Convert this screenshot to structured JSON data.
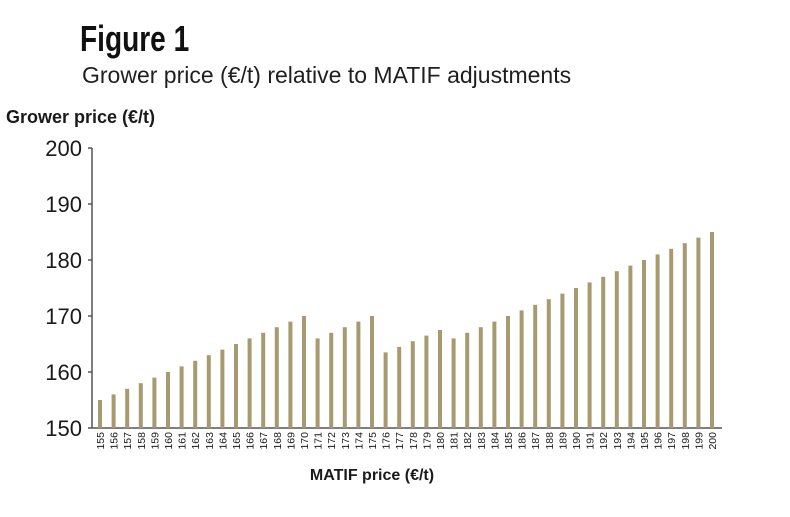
{
  "figure_label": "Figure 1",
  "colors": {
    "bar": "#a89a70",
    "axis": "#555555",
    "text": "#1a1a1a"
  },
  "chart_data": {
    "type": "bar",
    "title": "Grower price (€/t) relative to MATIF adjustments",
    "xlabel": "MATIF price (€/t)",
    "ylabel": "Grower price (€/t)",
    "ylim": [
      150,
      200
    ],
    "yticks": [
      150,
      160,
      170,
      180,
      190,
      200
    ],
    "grid": false,
    "legend": "none",
    "categories": [
      "155",
      "156",
      "157",
      "158",
      "159",
      "160",
      "161",
      "162",
      "163",
      "164",
      "165",
      "166",
      "167",
      "168",
      "169",
      "170",
      "171",
      "172",
      "173",
      "174",
      "175",
      "176",
      "177",
      "178",
      "179",
      "180",
      "181",
      "182",
      "183",
      "184",
      "185",
      "186",
      "187",
      "188",
      "189",
      "190",
      "191",
      "192",
      "193",
      "194",
      "195",
      "196",
      "197",
      "198",
      "199",
      "200"
    ],
    "values": [
      155,
      156,
      157,
      158,
      159,
      160,
      161,
      162,
      163,
      164,
      165,
      166,
      167,
      168,
      169,
      170,
      166,
      167,
      168,
      169,
      170,
      163.5,
      164.5,
      165.5,
      166.5,
      167.5,
      166,
      167,
      168,
      169,
      170,
      171,
      172,
      173,
      174,
      175,
      176,
      177,
      178,
      179,
      180,
      181,
      182,
      183,
      184,
      185
    ]
  }
}
